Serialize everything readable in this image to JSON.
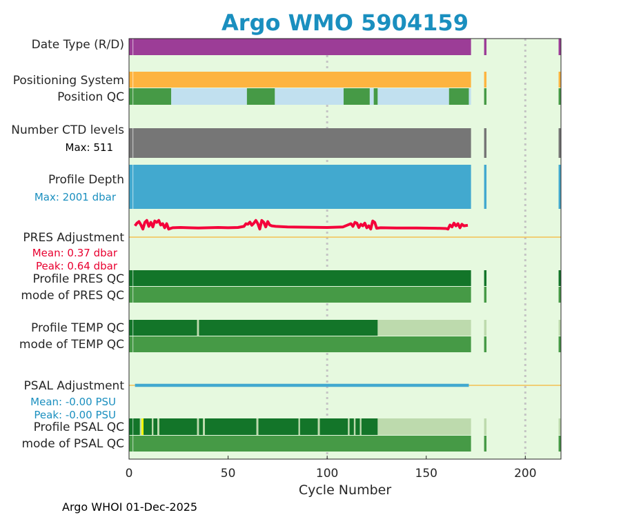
{
  "chart_data": {
    "type": "bar",
    "title": "Argo WMO 5904159",
    "xlabel": "Cycle Number",
    "xlim": [
      0,
      218
    ],
    "xticks": [
      0,
      50,
      100,
      150,
      200
    ],
    "gridlines_x": [
      100,
      200
    ],
    "footer": "Argo WHOI 01-Dec-2025",
    "colors": {
      "title": "#1a8fbf",
      "background": "#e6f9df",
      "date_type": "#9c3d97",
      "positioning": "#fdb440",
      "qc_good": "#469a46",
      "qc_dark": "#137529",
      "qc_light": "#bddaad",
      "qc_blue": "#c1e0ef",
      "ctd": "#767676",
      "depth": "#42a9cf",
      "pres_adj": "#f4003a",
      "psal_adj": "#42a9cf",
      "zero_line": "#f4c050",
      "yellow": "#ffff00",
      "cyan_text": "#1a8fbf",
      "red_text": "#e8002f"
    },
    "rows": {
      "date_type": {
        "label": "Date Type (R/D)",
        "segments": [
          [
            0,
            172.6,
            "date_type"
          ],
          [
            179.2,
            180.4,
            "date_type"
          ],
          [
            216.8,
            218,
            "date_type"
          ]
        ]
      },
      "positioning": {
        "label": "Positioning System",
        "segments": [
          [
            0,
            172.6,
            "positioning"
          ],
          [
            179.2,
            180.4,
            "positioning"
          ],
          [
            216.8,
            218,
            "positioning"
          ]
        ]
      },
      "position_qc": {
        "label": "Position QC",
        "segments": [
          [
            0,
            21.3,
            "qc_good"
          ],
          [
            21.3,
            59.5,
            "qc_blue"
          ],
          [
            59.5,
            73.6,
            "qc_good"
          ],
          [
            73.6,
            108.3,
            "qc_blue"
          ],
          [
            108.3,
            121.5,
            "qc_good"
          ],
          [
            121.5,
            123.5,
            "qc_blue"
          ],
          [
            123.5,
            125.5,
            "qc_good"
          ],
          [
            125.5,
            161.5,
            "qc_blue"
          ],
          [
            161.5,
            171.5,
            "qc_good"
          ],
          [
            171.5,
            172.6,
            "qc_blue"
          ],
          [
            179.2,
            180.4,
            "qc_good"
          ],
          [
            216.8,
            218,
            "qc_good"
          ]
        ]
      },
      "ctd_levels": {
        "label": "Number CTD levels",
        "max_label": "Max: 511",
        "segments": [
          [
            0,
            172.6,
            "ctd"
          ],
          [
            179.2,
            180.4,
            "ctd"
          ],
          [
            216.8,
            218,
            "ctd"
          ]
        ]
      },
      "profile_depth": {
        "label": "Profile Depth",
        "max_label": "Max: 2001 dbar",
        "segments": [
          [
            0,
            172.6,
            "depth"
          ],
          [
            179.2,
            180.4,
            "depth"
          ],
          [
            216.8,
            218,
            "depth"
          ]
        ]
      },
      "pres_adjustment": {
        "label": "PRES Adjustment",
        "mean_label": "Mean: 0.37 dbar",
        "peak_label": "Peak: 0.64 dbar",
        "curve": [
          [
            3,
            0.42
          ],
          [
            4,
            0.52
          ],
          [
            5,
            0.58
          ],
          [
            6,
            0.46
          ],
          [
            7,
            0.3
          ],
          [
            8,
            0.55
          ],
          [
            9,
            0.62
          ],
          [
            10,
            0.4
          ],
          [
            11,
            0.55
          ],
          [
            12,
            0.38
          ],
          [
            13,
            0.6
          ],
          [
            14,
            0.55
          ],
          [
            15,
            0.62
          ],
          [
            16,
            0.45
          ],
          [
            17,
            0.5
          ],
          [
            18,
            0.35
          ],
          [
            19,
            0.5
          ],
          [
            20,
            0.3
          ],
          [
            22,
            0.35
          ],
          [
            26,
            0.36
          ],
          [
            30,
            0.35
          ],
          [
            35,
            0.34
          ],
          [
            40,
            0.35
          ],
          [
            45,
            0.36
          ],
          [
            50,
            0.35
          ],
          [
            55,
            0.36
          ],
          [
            58,
            0.4
          ],
          [
            59,
            0.5
          ],
          [
            60,
            0.48
          ],
          [
            61,
            0.56
          ],
          [
            62,
            0.44
          ],
          [
            63,
            0.52
          ],
          [
            64,
            0.62
          ],
          [
            65,
            0.5
          ],
          [
            66,
            0.3
          ],
          [
            67,
            0.62
          ],
          [
            68,
            0.55
          ],
          [
            69,
            0.38
          ],
          [
            70,
            0.58
          ],
          [
            71,
            0.45
          ],
          [
            72,
            0.42
          ],
          [
            74,
            0.4
          ],
          [
            80,
            0.38
          ],
          [
            90,
            0.37
          ],
          [
            100,
            0.36
          ],
          [
            108,
            0.38
          ],
          [
            110,
            0.44
          ],
          [
            112,
            0.5
          ],
          [
            113,
            0.4
          ],
          [
            114,
            0.55
          ],
          [
            115,
            0.52
          ],
          [
            116,
            0.36
          ],
          [
            117,
            0.48
          ],
          [
            118,
            0.42
          ],
          [
            119,
            0.52
          ],
          [
            120,
            0.35
          ],
          [
            121,
            0.42
          ],
          [
            122,
            0.3
          ],
          [
            123,
            0.6
          ],
          [
            124,
            0.55
          ],
          [
            125,
            0.33
          ],
          [
            127,
            0.35
          ],
          [
            135,
            0.34
          ],
          [
            145,
            0.34
          ],
          [
            155,
            0.33
          ],
          [
            160,
            0.32
          ],
          [
            161,
            0.3
          ],
          [
            162,
            0.45
          ],
          [
            163,
            0.38
          ],
          [
            164,
            0.52
          ],
          [
            165,
            0.42
          ],
          [
            166,
            0.5
          ],
          [
            167,
            0.35
          ],
          [
            168,
            0.48
          ],
          [
            169,
            0.42
          ],
          [
            171,
            0.44
          ]
        ]
      },
      "profile_pres_qc": {
        "label": "Profile PRES QC",
        "segments": [
          [
            0,
            172.6,
            "qc_dark"
          ],
          [
            179.2,
            180.4,
            "qc_dark"
          ],
          [
            216.8,
            218,
            "qc_dark"
          ]
        ]
      },
      "mode_pres_qc": {
        "label": "mode of PRES QC",
        "segments": [
          [
            0,
            172.6,
            "qc_good"
          ],
          [
            179.2,
            180.4,
            "qc_good"
          ],
          [
            216.8,
            218,
            "qc_good"
          ]
        ]
      },
      "profile_temp_qc": {
        "label": "Profile TEMP QC",
        "segments": [
          [
            0,
            34.3,
            "qc_dark"
          ],
          [
            34.3,
            35.3,
            "qc_light"
          ],
          [
            35.3,
            125.5,
            "qc_dark"
          ],
          [
            125.5,
            172.6,
            "qc_light"
          ],
          [
            179.2,
            180.4,
            "qc_light"
          ],
          [
            216.8,
            218,
            "qc_light"
          ]
        ]
      },
      "mode_temp_qc": {
        "label": "mode of TEMP QC",
        "segments": [
          [
            0,
            172.6,
            "qc_good"
          ],
          [
            179.2,
            180.4,
            "qc_good"
          ],
          [
            216.8,
            218,
            "qc_good"
          ]
        ]
      },
      "psal_adjustment": {
        "label": "PSAL Adjustment",
        "mean_label": "Mean: -0.00 PSU",
        "peak_label": "Peak: -0.00 PSU",
        "line_range": [
          3,
          171.5
        ]
      },
      "profile_psal_qc": {
        "label": "Profile PSAL QC",
        "segments": [
          [
            0,
            5.5,
            "qc_dark"
          ],
          [
            5.5,
            6.3,
            "qc_light"
          ],
          [
            6.3,
            7.3,
            "yellow"
          ],
          [
            7.3,
            11.5,
            "qc_dark"
          ],
          [
            11.5,
            12.3,
            "qc_light"
          ],
          [
            12.3,
            14.3,
            "qc_dark"
          ],
          [
            14.3,
            15.3,
            "qc_light"
          ],
          [
            15.3,
            34.3,
            "qc_dark"
          ],
          [
            34.3,
            35.3,
            "qc_light"
          ],
          [
            35.3,
            37.3,
            "qc_dark"
          ],
          [
            37.3,
            38.3,
            "qc_light"
          ],
          [
            38.3,
            64.3,
            "qc_dark"
          ],
          [
            64.3,
            65.3,
            "qc_light"
          ],
          [
            65.3,
            85.5,
            "qc_dark"
          ],
          [
            85.5,
            86.3,
            "qc_light"
          ],
          [
            86.3,
            95.3,
            "qc_dark"
          ],
          [
            95.3,
            96.3,
            "qc_light"
          ],
          [
            96.3,
            110.5,
            "qc_dark"
          ],
          [
            110.5,
            111.3,
            "qc_light"
          ],
          [
            111.3,
            113.5,
            "qc_dark"
          ],
          [
            113.5,
            114.3,
            "qc_light"
          ],
          [
            114.3,
            116.5,
            "qc_dark"
          ],
          [
            116.5,
            117.3,
            "qc_light"
          ],
          [
            117.3,
            125.5,
            "qc_dark"
          ],
          [
            125.5,
            172.6,
            "qc_light"
          ],
          [
            179.2,
            180.4,
            "qc_light"
          ],
          [
            216.8,
            218,
            "qc_light"
          ]
        ]
      },
      "mode_psal_qc": {
        "label": "mode of PSAL QC",
        "segments": [
          [
            0,
            172.6,
            "qc_good"
          ],
          [
            179.2,
            180.4,
            "qc_good"
          ],
          [
            216.8,
            218,
            "qc_good"
          ]
        ]
      }
    }
  }
}
